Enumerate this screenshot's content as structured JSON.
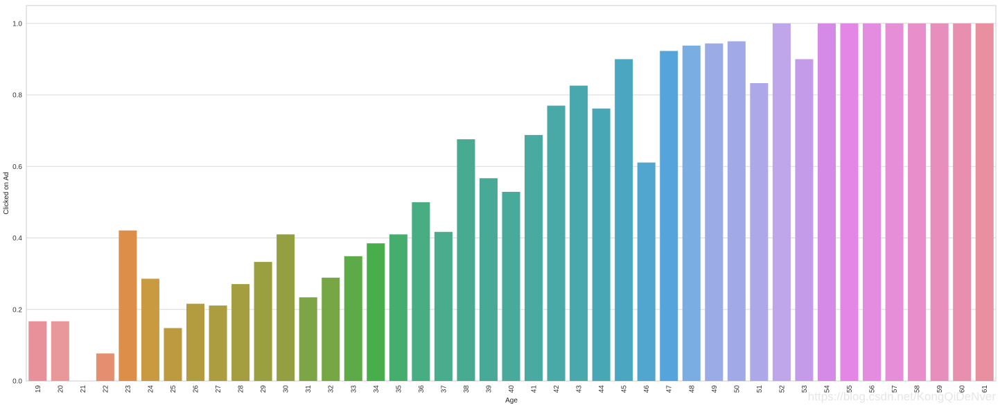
{
  "chart_data": {
    "type": "bar",
    "title": "",
    "xlabel": "Age",
    "ylabel": "Clicked on Ad",
    "ylim": [
      0,
      1.05
    ],
    "yticks": [
      "0.0",
      "0.2",
      "0.4",
      "0.6",
      "0.8",
      "1.0"
    ],
    "grid": "horizontal",
    "categories": [
      "19",
      "20",
      "21",
      "22",
      "23",
      "24",
      "25",
      "26",
      "27",
      "28",
      "29",
      "30",
      "31",
      "32",
      "33",
      "34",
      "35",
      "36",
      "37",
      "38",
      "39",
      "40",
      "41",
      "42",
      "43",
      "44",
      "45",
      "46",
      "47",
      "48",
      "49",
      "50",
      "51",
      "52",
      "53",
      "54",
      "55",
      "56",
      "57",
      "58",
      "59",
      "60",
      "61"
    ],
    "values": [
      0.167,
      0.167,
      0.0,
      0.077,
      0.421,
      0.286,
      0.148,
      0.216,
      0.211,
      0.271,
      0.333,
      0.41,
      0.234,
      0.289,
      0.349,
      0.385,
      0.41,
      0.5,
      0.417,
      0.676,
      0.567,
      0.529,
      0.688,
      0.77,
      0.826,
      0.762,
      0.9,
      0.611,
      0.923,
      0.938,
      0.944,
      0.95,
      0.833,
      1.0,
      0.9,
      1.0,
      1.0,
      1.0,
      1.0,
      1.0,
      1.0,
      1.0,
      1.0
    ],
    "colors": [
      "#e8919a",
      "#e8979a",
      "#e99884",
      "#e49070",
      "#dd8f4a",
      "#c99a40",
      "#bc9a40",
      "#b39b40",
      "#ab9d40",
      "#a49e40",
      "#9a9f40",
      "#939f40",
      "#7ea545",
      "#77a745",
      "#5daa48",
      "#48ae4c",
      "#45ad6e",
      "#48ad83",
      "#48ac8d",
      "#48ab91",
      "#48aa96",
      "#48aa9a",
      "#48aaa1",
      "#48a9a7",
      "#48a8ad",
      "#48a7b4",
      "#4aa6c1",
      "#50a6cf",
      "#55a5dc",
      "#7aaee2",
      "#9babe5",
      "#a1aae7",
      "#ada9e8",
      "#bfa5ea",
      "#c49be9",
      "#d58ae8",
      "#e386e6",
      "#e38ce0",
      "#e68ed7",
      "#e88ecb",
      "#e88ebd",
      "#e88eae",
      "#e8909f"
    ]
  },
  "watermark": "https://blog.csdn.net/KongQiDeNver"
}
